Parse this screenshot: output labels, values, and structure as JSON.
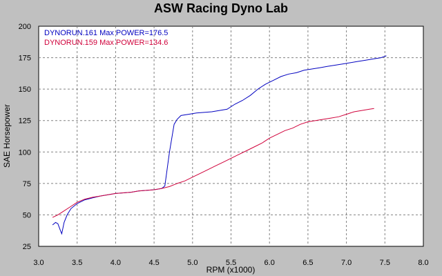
{
  "chart_data": {
    "type": "line",
    "title": "ASW Racing Dyno Lab",
    "xlabel": "RPM (x1000)",
    "ylabel": "SAE Horsepower",
    "xlim": [
      3.0,
      8.0
    ],
    "ylim": [
      25,
      200
    ],
    "xticks": [
      "3.0",
      "3.5",
      "4.0",
      "4.5",
      "5.0",
      "5.5",
      "6.0",
      "6.5",
      "7.0",
      "7.5",
      "8.0"
    ],
    "yticks": [
      "25",
      "50",
      "75",
      "100",
      "125",
      "150",
      "175",
      "200"
    ],
    "grid": true,
    "legend_position": "top-left",
    "series": [
      {
        "name": "DYNORUN.161",
        "legend_text": "DYNORUN.161  Max POWER=176.5",
        "color": "#0000c0",
        "points": [
          [
            3.18,
            42
          ],
          [
            3.22,
            44
          ],
          [
            3.25,
            43
          ],
          [
            3.28,
            38
          ],
          [
            3.3,
            35
          ],
          [
            3.33,
            44
          ],
          [
            3.37,
            50
          ],
          [
            3.42,
            55
          ],
          [
            3.5,
            59
          ],
          [
            3.6,
            62
          ],
          [
            3.7,
            63.5
          ],
          [
            3.8,
            65
          ],
          [
            3.9,
            66
          ],
          [
            4.0,
            67
          ],
          [
            4.1,
            67.5
          ],
          [
            4.2,
            68
          ],
          [
            4.3,
            69
          ],
          [
            4.4,
            69.5
          ],
          [
            4.5,
            70
          ],
          [
            4.6,
            71
          ],
          [
            4.64,
            73
          ],
          [
            4.7,
            100
          ],
          [
            4.76,
            122
          ],
          [
            4.8,
            126
          ],
          [
            4.85,
            129
          ],
          [
            4.95,
            130
          ],
          [
            5.05,
            131
          ],
          [
            5.15,
            131.5
          ],
          [
            5.25,
            132
          ],
          [
            5.35,
            133
          ],
          [
            5.45,
            134
          ],
          [
            5.55,
            138
          ],
          [
            5.65,
            141
          ],
          [
            5.75,
            145
          ],
          [
            5.85,
            150
          ],
          [
            5.95,
            154
          ],
          [
            6.05,
            157
          ],
          [
            6.15,
            160
          ],
          [
            6.25,
            162
          ],
          [
            6.35,
            163
          ],
          [
            6.45,
            165
          ],
          [
            6.55,
            166
          ],
          [
            6.65,
            167
          ],
          [
            6.75,
            168
          ],
          [
            6.85,
            169
          ],
          [
            6.95,
            170
          ],
          [
            7.05,
            171
          ],
          [
            7.15,
            172
          ],
          [
            7.25,
            173
          ],
          [
            7.35,
            174
          ],
          [
            7.45,
            175
          ],
          [
            7.52,
            176.5
          ]
        ]
      },
      {
        "name": "DYNORUN.159",
        "legend_text": "DYNORUN.159  Max POWER=134.6",
        "color": "#d0003a",
        "points": [
          [
            3.18,
            48
          ],
          [
            3.25,
            50
          ],
          [
            3.3,
            52
          ],
          [
            3.4,
            56
          ],
          [
            3.5,
            60
          ],
          [
            3.6,
            62.5
          ],
          [
            3.7,
            64
          ],
          [
            3.8,
            65
          ],
          [
            3.9,
            66
          ],
          [
            4.0,
            67
          ],
          [
            4.1,
            67.5
          ],
          [
            4.2,
            68
          ],
          [
            4.3,
            69
          ],
          [
            4.4,
            69.5
          ],
          [
            4.5,
            70
          ],
          [
            4.6,
            71
          ],
          [
            4.7,
            72.5
          ],
          [
            4.8,
            75
          ],
          [
            4.9,
            77
          ],
          [
            5.0,
            80
          ],
          [
            5.1,
            83
          ],
          [
            5.2,
            86
          ],
          [
            5.3,
            89
          ],
          [
            5.4,
            92
          ],
          [
            5.5,
            95
          ],
          [
            5.6,
            98
          ],
          [
            5.7,
            101
          ],
          [
            5.8,
            104
          ],
          [
            5.9,
            107
          ],
          [
            6.0,
            111
          ],
          [
            6.1,
            114
          ],
          [
            6.2,
            117
          ],
          [
            6.3,
            119
          ],
          [
            6.4,
            122
          ],
          [
            6.5,
            124
          ],
          [
            6.6,
            125
          ],
          [
            6.7,
            126
          ],
          [
            6.8,
            127
          ],
          [
            6.9,
            128
          ],
          [
            7.0,
            130
          ],
          [
            7.1,
            132
          ],
          [
            7.2,
            133
          ],
          [
            7.3,
            134
          ],
          [
            7.36,
            134.6
          ]
        ]
      }
    ]
  }
}
